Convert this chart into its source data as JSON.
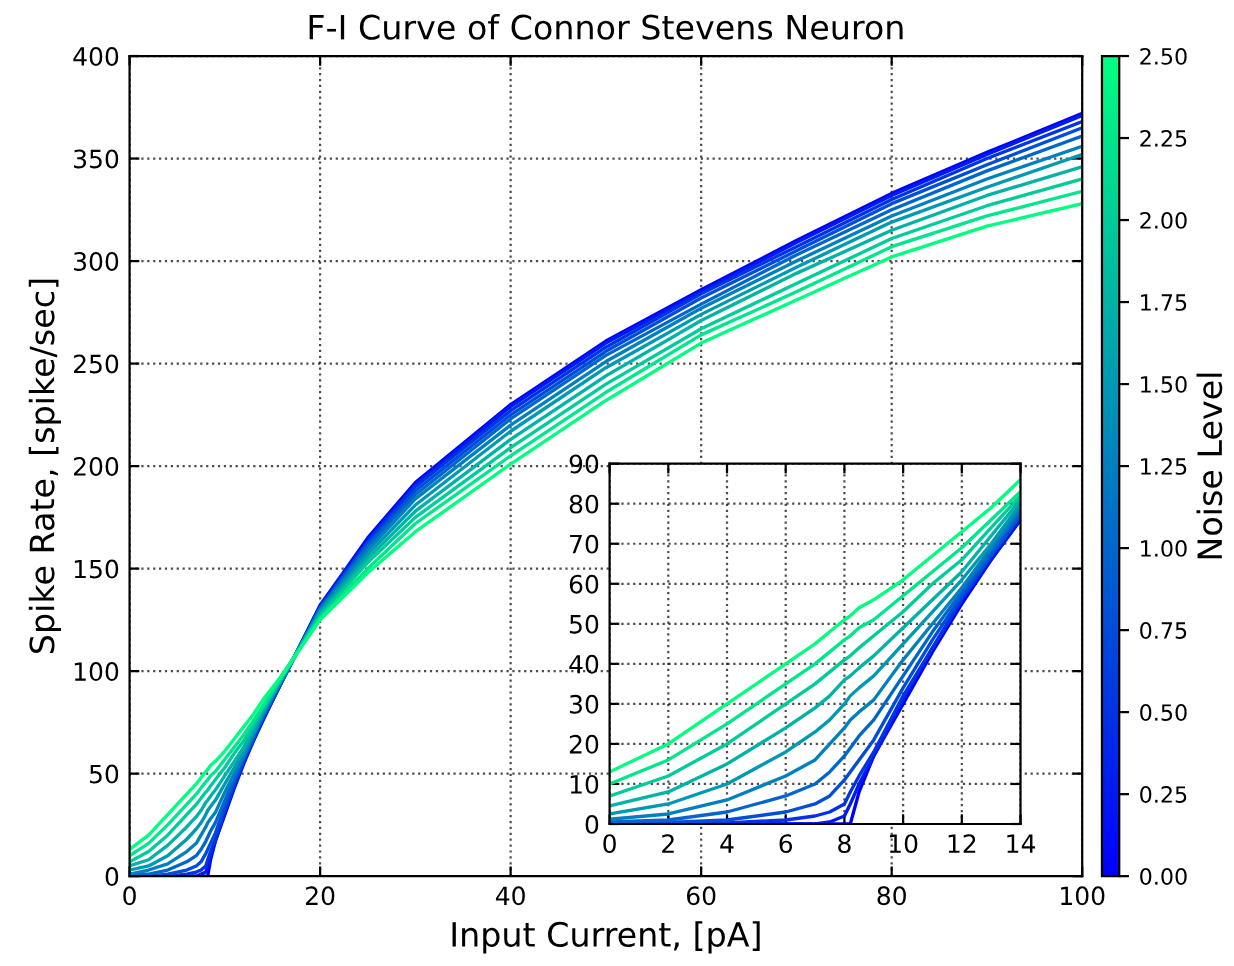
{
  "chart_data": [
    {
      "type": "line",
      "title": "F-I Curve of Connor Stevens Neuron",
      "xlabel": "Input Current, [pA]",
      "ylabel": "Spike Rate, [spike/sec]",
      "clabel": "Noise Level",
      "clim": [
        0,
        2.5
      ],
      "cticks": [
        {
          "value": 0,
          "label": "0.00"
        },
        {
          "value": 0.25,
          "label": "0.25"
        },
        {
          "value": 0.5,
          "label": "0.50"
        },
        {
          "value": 0.75,
          "label": "0.75"
        },
        {
          "value": 1,
          "label": "1.00"
        },
        {
          "value": 1.25,
          "label": "1.25"
        },
        {
          "value": 1.5,
          "label": "1.50"
        },
        {
          "value": 1.75,
          "label": "1.75"
        },
        {
          "value": 2,
          "label": "2.00"
        },
        {
          "value": 2.25,
          "label": "2.25"
        },
        {
          "value": 2.5,
          "label": "2.50"
        }
      ],
      "x": [
        0,
        2,
        4,
        6,
        7,
        7.5,
        8,
        8.2,
        8.5,
        9,
        10,
        11,
        12,
        13,
        14,
        16,
        20,
        25,
        30,
        40,
        50,
        60,
        70,
        80,
        90,
        100
      ],
      "xlim": [
        0,
        100
      ],
      "xticks": [
        0,
        20,
        40,
        60,
        80,
        100
      ],
      "ylim": [
        0,
        400
      ],
      "yticks": [
        0,
        50,
        100,
        150,
        200,
        250,
        300,
        350,
        400
      ],
      "grid": true,
      "legend": false,
      "marker": "none",
      "line_style": "solid",
      "series": [
        {
          "color": "#0000ff",
          "values": [
            0,
            0,
            0,
            0,
            0,
            0,
            0,
            0,
            8,
            17,
            30,
            43,
            55,
            66,
            76,
            95,
            132,
            165,
            192,
            230,
            261,
            286,
            310,
            333,
            353,
            372
          ]
        },
        {
          "color": "#001af2",
          "values": [
            0,
            0,
            0,
            0,
            0,
            1,
            2,
            5,
            10,
            17,
            31,
            44,
            56,
            66,
            76,
            95,
            132,
            164,
            191,
            229,
            260,
            285,
            309,
            332,
            352,
            371
          ]
        },
        {
          "color": "#0033e6",
          "values": [
            0,
            0,
            0,
            1,
            2,
            3,
            5,
            8,
            12,
            18,
            32,
            44,
            56,
            67,
            77,
            95,
            131,
            163,
            190,
            227,
            258,
            284,
            307,
            330,
            350,
            368
          ]
        },
        {
          "color": "#004dd9",
          "values": [
            0,
            0,
            1,
            3,
            5,
            7,
            11,
            13,
            16,
            21,
            34,
            46,
            57,
            67,
            77,
            95,
            131,
            162,
            188,
            225,
            256,
            282,
            305,
            328,
            347,
            365
          ]
        },
        {
          "color": "#0066cc",
          "values": [
            1,
            1,
            3,
            7,
            10,
            13,
            17,
            19,
            22,
            26,
            37,
            48,
            58,
            68,
            78,
            96,
            130,
            161,
            186,
            223,
            254,
            279,
            303,
            325,
            344,
            361
          ]
        },
        {
          "color": "#0080bf",
          "values": [
            1,
            3,
            6,
            12,
            16,
            20,
            24,
            26,
            28,
            31,
            41,
            50,
            59,
            69,
            79,
            96,
            130,
            159,
            184,
            220,
            251,
            277,
            300,
            322,
            340,
            356
          ]
        },
        {
          "color": "#0099b3",
          "values": [
            3,
            5,
            10,
            18,
            23,
            26,
            30,
            32,
            34,
            37,
            45,
            53,
            61,
            70,
            80,
            96,
            129,
            157,
            181,
            217,
            248,
            274,
            297,
            319,
            336,
            352
          ]
        },
        {
          "color": "#00b3a6",
          "values": [
            5,
            8,
            15,
            24,
            29,
            32,
            36,
            37,
            39,
            42,
            49,
            56,
            63,
            72,
            81,
            97,
            128,
            155,
            178,
            213,
            244,
            271,
            294,
            315,
            332,
            346
          ]
        },
        {
          "color": "#00cc99",
          "values": [
            7,
            12,
            20,
            30,
            35,
            38,
            41,
            42,
            44,
            47,
            53,
            60,
            66,
            74,
            82,
            97,
            127,
            153,
            175,
            209,
            240,
            267,
            289,
            311,
            327,
            340
          ]
        },
        {
          "color": "#00e68c",
          "values": [
            10,
            16,
            25,
            35,
            40,
            43,
            46,
            47,
            49,
            51,
            57,
            63,
            69,
            76,
            83,
            98,
            126,
            150,
            172,
            205,
            236,
            264,
            285,
            307,
            322,
            334
          ]
        },
        {
          "color": "#00ff80",
          "values": [
            13,
            20,
            30,
            40,
            45,
            48,
            51,
            52,
            54,
            56,
            61,
            67,
            73,
            79,
            86,
            98,
            125,
            148,
            168,
            201,
            232,
            260,
            281,
            302,
            317,
            328
          ]
        }
      ]
    },
    {
      "type": "line",
      "x": [
        0,
        2,
        4,
        6,
        7,
        7.5,
        8,
        8.2,
        8.5,
        9,
        10,
        11,
        12,
        13,
        14
      ],
      "xlim": [
        0,
        14
      ],
      "xticks": [
        0,
        2,
        4,
        6,
        8,
        10,
        12,
        14
      ],
      "ylim": [
        0,
        90
      ],
      "yticks": [
        0,
        10,
        20,
        30,
        40,
        50,
        60,
        70,
        80,
        90
      ],
      "grid": true,
      "legend": false,
      "marker": "none",
      "line_style": "solid",
      "series": [
        {
          "color": "#0000ff",
          "values": [
            0,
            0,
            0,
            0,
            0,
            0,
            0,
            0,
            8,
            17,
            30,
            43,
            55,
            66,
            76
          ]
        },
        {
          "color": "#001af2",
          "values": [
            0,
            0,
            0,
            0,
            0,
            0.5,
            2,
            5,
            10,
            17,
            31,
            44,
            56,
            66,
            76
          ]
        },
        {
          "color": "#0033e6",
          "values": [
            0,
            0,
            0.3,
            1,
            2,
            3,
            5,
            8,
            12,
            18,
            32,
            44,
            56,
            67,
            77
          ]
        },
        {
          "color": "#004dd9",
          "values": [
            0.2,
            0.4,
            1,
            3,
            5,
            7,
            11,
            13,
            16,
            21,
            34,
            46,
            57,
            67,
            77
          ]
        },
        {
          "color": "#0066cc",
          "values": [
            0.5,
            1,
            3,
            7,
            10,
            13,
            17,
            19,
            22,
            26,
            37,
            48,
            58,
            68,
            78
          ]
        },
        {
          "color": "#0080bf",
          "values": [
            1.2,
            2.5,
            6,
            12,
            16,
            20,
            24,
            26,
            28,
            31,
            41,
            50,
            59,
            69,
            79
          ]
        },
        {
          "color": "#0099b3",
          "values": [
            2.5,
            5,
            10,
            18,
            23,
            26,
            30,
            32,
            34,
            37,
            45,
            53,
            61,
            70,
            80
          ]
        },
        {
          "color": "#00b3a6",
          "values": [
            4.5,
            8,
            15,
            24,
            29,
            32,
            36,
            37,
            39,
            42,
            49,
            56,
            63,
            72,
            81
          ]
        },
        {
          "color": "#00cc99",
          "values": [
            7,
            12,
            20,
            30,
            35,
            38,
            41,
            42,
            44,
            47,
            53,
            60,
            66,
            74,
            82
          ]
        },
        {
          "color": "#00e68c",
          "values": [
            10,
            16,
            25,
            35,
            40,
            43,
            46,
            47,
            49,
            51,
            57,
            63,
            69,
            76,
            83
          ]
        },
        {
          "color": "#00ff80",
          "values": [
            13,
            20,
            30,
            40,
            45,
            48,
            51,
            52,
            54,
            56,
            61,
            67,
            73,
            79,
            86
          ]
        }
      ]
    }
  ]
}
